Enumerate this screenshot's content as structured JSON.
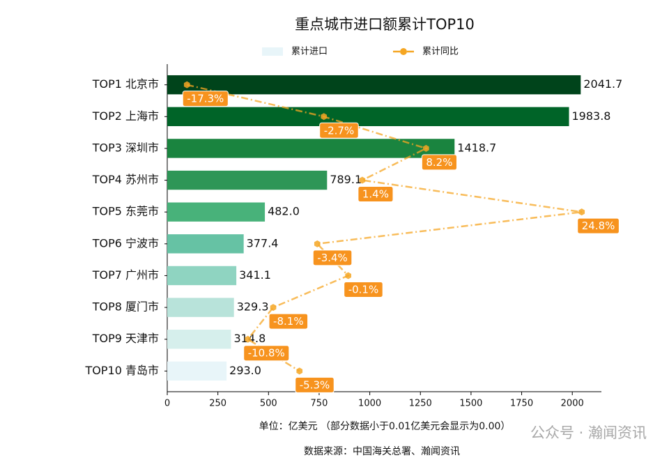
{
  "chart_data": {
    "type": "bar",
    "orientation": "horizontal",
    "title": "重点城市进口额累计TOP10",
    "xlabel": "单位：亿美元 （部分数据小于0.01亿美元会显示为0.00）",
    "source": "数据来源：中国海关总署、瀚闻资讯",
    "watermark": "公众号 · 瀚闻资讯",
    "categories": [
      "TOP1 北京市",
      "TOP2 上海市",
      "TOP3 深圳市",
      "TOP4 苏州市",
      "TOP5 东莞市",
      "TOP6 宁波市",
      "TOP7 广州市",
      "TOP8 厦门市",
      "TOP9 天津市",
      "TOP10 青岛市"
    ],
    "xlim": [
      0,
      2143.8
    ],
    "xticks": [
      0,
      250,
      500,
      750,
      1000,
      1250,
      1500,
      1750,
      2000
    ],
    "x2lim": [
      -19.4,
      26.9
    ],
    "series": [
      {
        "name": "累计进口",
        "type": "bar",
        "colors": [
          "#00441b",
          "#006428",
          "#1a843f",
          "#2e9657",
          "#48b27a",
          "#66c2a4",
          "#8fd4c1",
          "#b8e3da",
          "#d6efec",
          "#e8f5f9"
        ],
        "values": [
          2041.7,
          1983.8,
          1418.7,
          789.1,
          482.0,
          377.4,
          341.1,
          329.3,
          314.8,
          293.0
        ],
        "value_labels": [
          "2041.7",
          "1983.8",
          "1418.7",
          "789.1",
          "482.0",
          "377.4",
          "341.1",
          "329.3",
          "314.8",
          "293.0"
        ]
      },
      {
        "name": "累计同比",
        "type": "line",
        "axis": "x2",
        "color": "#f5a623",
        "label_color": "#f7931e",
        "values": [
          -17.3,
          -2.7,
          8.2,
          1.4,
          24.8,
          -3.4,
          -0.1,
          -8.1,
          -10.8,
          -5.3
        ],
        "value_labels": [
          "-17.3%",
          "-2.7%",
          "8.2%",
          "1.4%",
          "24.8%",
          "-3.4%",
          "-0.1%",
          "-8.1%",
          "-10.8%",
          "-5.3%"
        ]
      }
    ]
  }
}
